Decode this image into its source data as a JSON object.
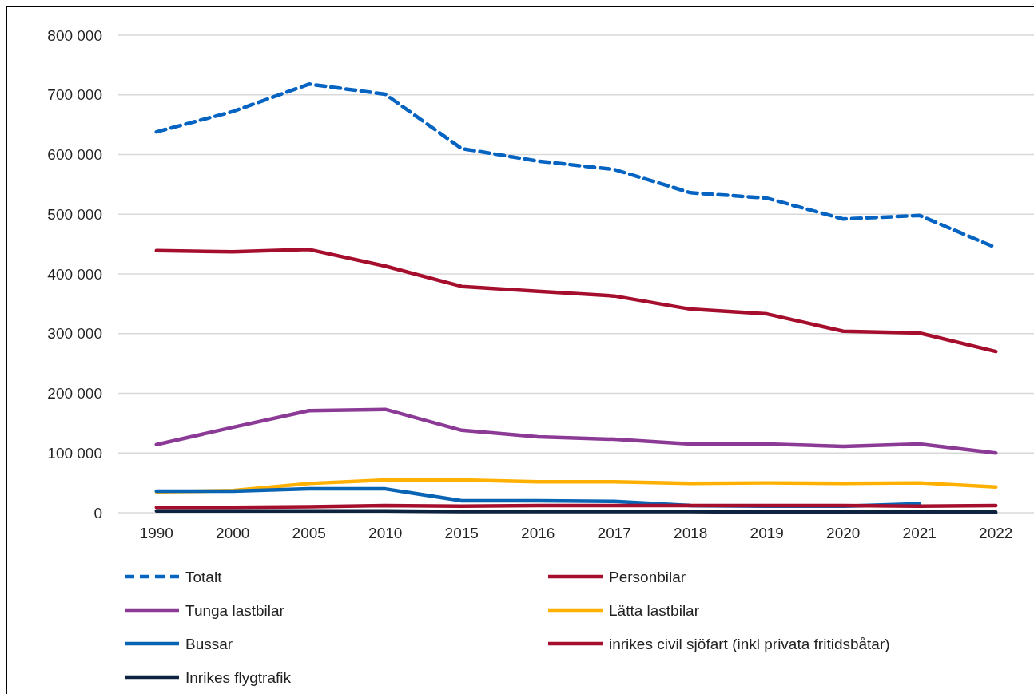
{
  "chart_data": {
    "type": "line",
    "categories": [
      "1990",
      "2000",
      "2005",
      "2010",
      "2015",
      "2016",
      "2017",
      "2018",
      "2019",
      "2020",
      "2021",
      "2022"
    ],
    "ylim": [
      0,
      800000
    ],
    "yticks": [
      {
        "value": 0,
        "label": "0"
      },
      {
        "value": 100000,
        "label": "100 000"
      },
      {
        "value": 200000,
        "label": "200 000"
      },
      {
        "value": 300000,
        "label": "300 000"
      },
      {
        "value": 400000,
        "label": "400 000"
      },
      {
        "value": 500000,
        "label": "500 000"
      },
      {
        "value": 600000,
        "label": "600 000"
      },
      {
        "value": 700000,
        "label": "700 000"
      },
      {
        "value": 800000,
        "label": "800 000"
      }
    ],
    "grid": "y",
    "legend": "bottom",
    "marker": "none",
    "series": [
      {
        "name": "Totalt",
        "color": "#0563c1",
        "line_style": "dashed",
        "values": [
          638000,
          672000,
          718000,
          701000,
          610000,
          589000,
          575000,
          536000,
          527000,
          492000,
          498000,
          444000
        ]
      },
      {
        "name": "Personbilar",
        "color": "#a50f2d",
        "values": [
          439000,
          437000,
          441000,
          413000,
          379000,
          371000,
          363000,
          341000,
          333000,
          304000,
          301000,
          270000
        ]
      },
      {
        "name": "Tunga lastbilar",
        "color": "#8b3a96",
        "values": [
          114000,
          143000,
          171000,
          173000,
          138000,
          127000,
          123000,
          115000,
          115000,
          111000,
          115000,
          100000
        ]
      },
      {
        "name": "Lätta lastbilar",
        "color": "#ffb000",
        "values": [
          35000,
          37000,
          49000,
          55000,
          55000,
          52000,
          52000,
          49000,
          50000,
          49000,
          50000,
          43000
        ]
      },
      {
        "name": "Bussar",
        "color": "#0a64b4",
        "values": [
          36000,
          36000,
          40000,
          40000,
          20000,
          20000,
          19000,
          12000,
          11000,
          11000,
          15000,
          null
        ]
      },
      {
        "name": "inrikes civil sjöfart (inkl privata fritidsbåtar)",
        "color": "#a50f2d",
        "values": [
          9000,
          9000,
          10000,
          12000,
          11000,
          12000,
          12000,
          12000,
          12000,
          12000,
          11000,
          12000
        ]
      },
      {
        "name": "Inrikes flygtrafik",
        "color": "#0d2340",
        "values": [
          3000,
          3000,
          3000,
          3000,
          2000,
          2000,
          2000,
          2000,
          1000,
          1000,
          1000,
          1000
        ]
      }
    ]
  }
}
